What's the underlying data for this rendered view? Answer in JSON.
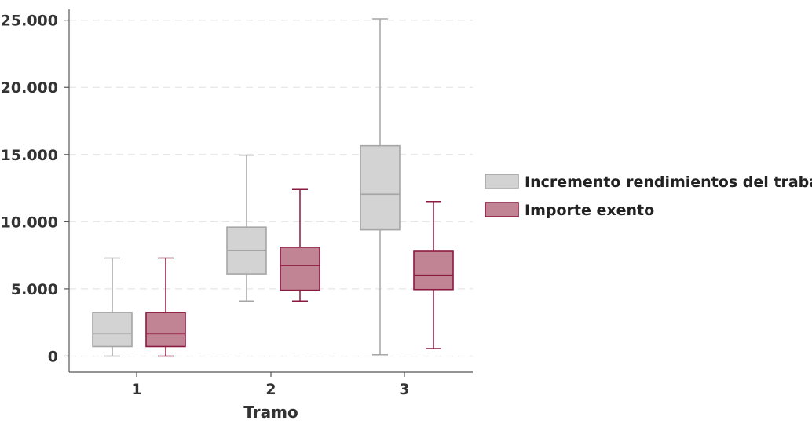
{
  "chart_data": {
    "type": "boxplot",
    "xlabel": "Tramo",
    "ylabel": "",
    "categories": [
      "1",
      "2",
      "3"
    ],
    "ylim": [
      -1200,
      25800
    ],
    "yticks": [
      0,
      5000,
      10000,
      15000,
      20000,
      25000
    ],
    "ytick_labels": [
      "0",
      "5.000",
      "10.000",
      "15.000",
      "20.000",
      "25.000"
    ],
    "grid": "horizontal dashed",
    "legend_position": "right",
    "series": [
      {
        "name": "Incremento rendimientos del trabajo",
        "color": "#d3d3d3",
        "stroke": "#a6a6a6",
        "boxes": [
          {
            "min": 0,
            "q1": 700,
            "median": 1650,
            "q3": 3250,
            "max": 7300
          },
          {
            "min": 4100,
            "q1": 6100,
            "median": 7850,
            "q3": 9600,
            "max": 14950
          },
          {
            "min": 100,
            "q1": 9400,
            "median": 12050,
            "q3": 15650,
            "max": 25100
          }
        ]
      },
      {
        "name": "Importe exento",
        "color": "#c08494",
        "stroke": "#8b1a3f",
        "boxes": [
          {
            "min": 0,
            "q1": 700,
            "median": 1650,
            "q3": 3250,
            "max": 7300
          },
          {
            "min": 4100,
            "q1": 4900,
            "median": 6750,
            "q3": 8100,
            "max": 12400
          },
          {
            "min": 550,
            "q1": 4950,
            "median": 6000,
            "q3": 7800,
            "max": 11500
          }
        ]
      }
    ]
  }
}
